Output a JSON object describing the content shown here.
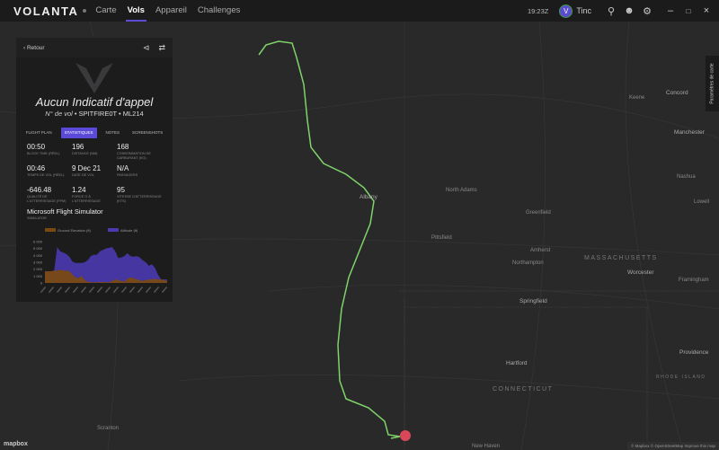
{
  "topbar": {
    "logo": "VOLANTA",
    "nav": [
      "Carte",
      "Vols",
      "Appareil",
      "Challenges"
    ],
    "active": "Vols",
    "time": "19:23Z",
    "user": "Tinc",
    "avatar_letter": "V",
    "icons": [
      "search-icon",
      "user-settings-icon",
      "gear-icon",
      "minimize-icon",
      "maximize-icon",
      "close-icon"
    ]
  },
  "panel": {
    "back": "Retour",
    "callsign": "Aucun Indicatif d'appel",
    "flight_no_label": "N° de vol",
    "aircraft": "SPITFIRE0T",
    "aircraft_code": "ML214",
    "tabs": [
      "FLIGHT PLAN",
      "STATISTIQUES",
      "NOTES",
      "SCREENSHOTS"
    ],
    "active_tab": "STATISTIQUES",
    "stats": [
      {
        "value": "00:50",
        "label": "Block time (réel)"
      },
      {
        "value": "196",
        "label": "Distance (NM)"
      },
      {
        "value": "168",
        "label": "Consommation de carburant (KG)"
      },
      {
        "value": "00:46",
        "label": "Temps de vol (réel)"
      },
      {
        "value": "9 Dec 21",
        "label": "Date de vol"
      },
      {
        "value": "N/A",
        "label": "Passagers"
      },
      {
        "value": "-646.48",
        "label": "Qualité de l'atterrissage (FPM)"
      },
      {
        "value": "1.24",
        "label": "Force G à l'atterrissage"
      },
      {
        "value": "95",
        "label": "Vitesse d'atterrissage (KTS)"
      }
    ],
    "simulator": {
      "value": "Microsoft Flight Simulator",
      "label": "SIMULATOR"
    }
  },
  "chart_data": {
    "type": "area",
    "legend": "top",
    "series": [
      {
        "name": "Ground Elevation (ft)",
        "color": "#7a4a12",
        "values": [
          1700,
          1700,
          1700,
          1800,
          1800,
          1900,
          1800,
          1800,
          1700,
          1200,
          800,
          700,
          1000,
          400,
          200,
          100,
          100,
          100,
          100,
          150,
          100,
          100,
          300,
          500,
          400,
          300,
          200,
          600,
          800,
          700,
          500,
          400,
          300,
          400,
          500,
          500,
          600,
          500,
          500,
          400,
          300
        ]
      },
      {
        "name": "Altitude (ft)",
        "color": "#4a3ab0",
        "values": [
          1700,
          1700,
          1700,
          1700,
          5200,
          4600,
          4400,
          4200,
          3800,
          3100,
          2900,
          2900,
          2900,
          3000,
          3300,
          3900,
          4100,
          4100,
          4600,
          4800,
          5000,
          5100,
          5200,
          4600,
          3600,
          3700,
          3900,
          4300,
          3900,
          3800,
          3900,
          3700,
          3300,
          3000,
          2500,
          2700,
          2200,
          1200,
          500,
          500,
          500
        ]
      }
    ],
    "ylim": [
      0,
      6000
    ],
    "yticks": [
      "0",
      "1 000",
      "2 000",
      "3 000",
      "4 000",
      "5 000",
      "6 000"
    ]
  },
  "map": {
    "side_button": "Paramètres de carte",
    "attribution": "© Mapbox © OpenStreetMap Improve this map",
    "brand": "mapbox",
    "labels": [
      "Albany",
      "Concord",
      "Manchester",
      "Nashua",
      "Lowell",
      "MASSACHUSETTS",
      "Worcester",
      "Springfield",
      "Hartford",
      "CONNECTICUT",
      "Providence",
      "New Haven",
      "Scranton",
      "Pittsfield",
      "North Adams",
      "Northampton",
      "Amherst",
      "Greenfield",
      "Framingham",
      "Keene",
      "RHODE ISLAND"
    ],
    "route_color": "#7fd36a"
  }
}
